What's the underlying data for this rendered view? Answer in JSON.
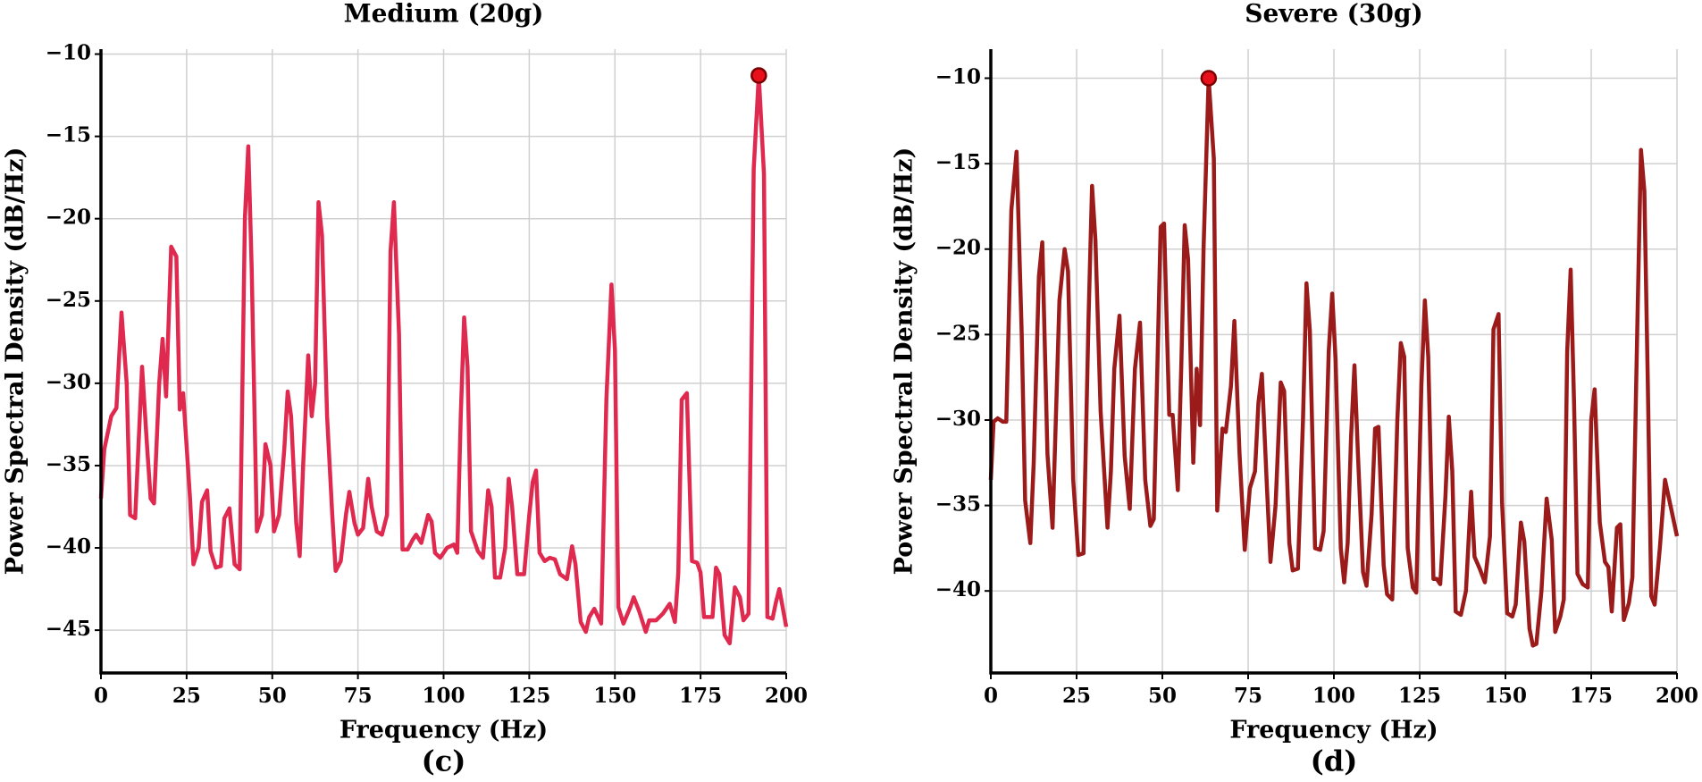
{
  "chart_data": [
    {
      "type": "line",
      "title": "Medium (20g)",
      "xlabel": "Frequency (Hz)",
      "ylabel": "Power Spectral Density (dB/Hz)",
      "caption": "(c)",
      "color": "#e0294f",
      "grid": true,
      "xlim": [
        0,
        200
      ],
      "ylim": [
        -47.6,
        -9.7
      ],
      "xticks": [
        0,
        25,
        50,
        75,
        100,
        125,
        150,
        175,
        200
      ],
      "yticks": [
        {
          "value": -45,
          "label": "−45"
        },
        {
          "value": -40,
          "label": "−40"
        },
        {
          "value": -35,
          "label": "−35"
        },
        {
          "value": -30,
          "label": "−30"
        },
        {
          "value": -25,
          "label": "−25"
        },
        {
          "value": -20,
          "label": "−20"
        },
        {
          "value": -15,
          "label": "−15"
        },
        {
          "value": -10,
          "label": "−10"
        }
      ],
      "x": [
        0,
        1,
        3,
        4.5,
        6,
        7.5,
        8.5,
        10,
        12,
        13.5,
        14.5,
        15.5,
        17,
        18,
        19,
        20.5,
        22,
        23,
        24,
        26,
        27,
        28.5,
        29.5,
        31,
        32,
        33.5,
        35,
        36,
        37.5,
        39,
        40.5,
        42,
        43,
        44,
        45.5,
        47,
        48,
        49.5,
        50.5,
        52,
        53.5,
        54.5,
        55.5,
        57,
        58,
        59,
        60.5,
        61.5,
        62.5,
        63.5,
        64.5,
        66,
        67.5,
        68.5,
        70,
        71.5,
        72.5,
        74,
        75,
        76.5,
        78,
        79,
        80.5,
        82,
        83.5,
        84.5,
        85.5,
        87,
        88,
        89.5,
        91,
        92,
        93.5,
        95.5,
        96.5,
        97.5,
        99,
        101,
        103,
        104,
        105,
        106,
        107,
        108,
        110,
        111.5,
        113,
        114,
        115,
        116.5,
        118,
        119,
        120,
        121.5,
        123.5,
        125,
        126,
        127,
        128,
        129.5,
        131,
        132.5,
        134,
        136,
        137.5,
        138.5,
        140,
        141.5,
        142.5,
        144,
        146,
        147.5,
        149,
        150,
        151,
        152.5,
        154.5,
        155.5,
        157,
        159,
        160,
        162,
        164,
        166,
        167.5,
        168.5,
        169.5,
        171,
        172.5,
        174,
        175,
        176,
        178.5,
        179.5,
        180.5,
        182,
        183.5,
        185,
        186.5,
        187.5,
        189,
        190.5,
        192,
        193.5,
        194.5,
        196,
        197,
        198,
        200
      ],
      "values": [
        -37,
        -34,
        -32,
        -31.5,
        -25.7,
        -30,
        -38,
        -38.2,
        -29,
        -34,
        -37,
        -37.3,
        -30,
        -27.3,
        -30.8,
        -21.7,
        -22.3,
        -31.6,
        -30.6,
        -37,
        -41,
        -40,
        -37.2,
        -36.5,
        -40.2,
        -41.2,
        -41.1,
        -38.2,
        -37.6,
        -41,
        -41.3,
        -20,
        -15.6,
        -23,
        -39,
        -38,
        -33.7,
        -35,
        -39,
        -38,
        -34,
        -30.5,
        -32,
        -38.5,
        -40.5,
        -35,
        -28.3,
        -32,
        -30,
        -19,
        -21,
        -32,
        -38,
        -41.4,
        -40.8,
        -38,
        -36.6,
        -38.5,
        -39.2,
        -38.8,
        -35.8,
        -37.5,
        -39,
        -39.2,
        -38,
        -22,
        -19,
        -27,
        -40.1,
        -40.1,
        -39.5,
        -39.2,
        -39.7,
        -38,
        -38.4,
        -40.3,
        -40.6,
        -40,
        -39.8,
        -40.3,
        -32,
        -26,
        -29,
        -39,
        -40.2,
        -40.6,
        -36.5,
        -37.5,
        -41.8,
        -41.8,
        -40,
        -35.8,
        -37.5,
        -41.6,
        -41.6,
        -38,
        -36,
        -35.3,
        -40.3,
        -40.8,
        -40.6,
        -40.7,
        -41.6,
        -41.9,
        -39.9,
        -41,
        -44.5,
        -45.1,
        -44.2,
        -43.7,
        -44.6,
        -31,
        -24,
        -28,
        -43.6,
        -44.6,
        -43.6,
        -43,
        -43.8,
        -45.1,
        -44.4,
        -44.4,
        -44,
        -43.4,
        -44.5,
        -41.5,
        -31,
        -30.6,
        -40.8,
        -40.9,
        -41.5,
        -44.2,
        -44.2,
        -41.2,
        -41.6,
        -45.3,
        -45.8,
        -42.4,
        -43,
        -44.4,
        -44,
        -17,
        -11.3,
        -17.3,
        -44.2,
        -44.3,
        -43.3,
        -42.5,
        -44.8
      ],
      "peak": {
        "x": 192,
        "y": -11.3
      },
      "peak_color": "#e8101a"
    },
    {
      "type": "line",
      "title": "Severe (30g)",
      "xlabel": "Frequency (Hz)",
      "ylabel": "Power Spectral Density (dB/Hz)",
      "caption": "(d)",
      "color": "#9b1b1b",
      "grid": true,
      "xlim": [
        0,
        200
      ],
      "ylim": [
        -44.8,
        -8.3
      ],
      "xticks": [
        0,
        25,
        50,
        75,
        100,
        125,
        150,
        175,
        200
      ],
      "yticks": [
        {
          "value": -40,
          "label": "−40"
        },
        {
          "value": -35,
          "label": "−35"
        },
        {
          "value": -30,
          "label": "−30"
        },
        {
          "value": -25,
          "label": "−25"
        },
        {
          "value": -20,
          "label": "−20"
        },
        {
          "value": -15,
          "label": "−15"
        },
        {
          "value": -10,
          "label": "−10"
        }
      ],
      "x": [
        0,
        0.8,
        2,
        3.5,
        4.5,
        6,
        7.5,
        9,
        10,
        11.5,
        12.5,
        14,
        15,
        16.5,
        18,
        20,
        21.5,
        22.5,
        24,
        25.5,
        27,
        28.5,
        29.5,
        30.5,
        32,
        34,
        35,
        36,
        37.5,
        39,
        40.5,
        42,
        43.5,
        45,
        46.5,
        47.5,
        49.5,
        50.5,
        52,
        53,
        54.5,
        55.5,
        56.5,
        57.5,
        59,
        60,
        61,
        62,
        63.5,
        65,
        66,
        67.5,
        68.5,
        70,
        71,
        72.5,
        74,
        75.5,
        77,
        78,
        79,
        80.5,
        81.5,
        83,
        84.5,
        85.5,
        87,
        88,
        89.5,
        91,
        92,
        93,
        94.5,
        96,
        97,
        98.5,
        99.5,
        100.5,
        102,
        103,
        104,
        105,
        106,
        107,
        108.5,
        109.5,
        111,
        112,
        113,
        114.5,
        115.5,
        117,
        118.5,
        119.5,
        120.5,
        121.5,
        123,
        124,
        125.5,
        126.5,
        127.5,
        129,
        130,
        131,
        132.5,
        133.5,
        134.5,
        135.5,
        137,
        138.5,
        140,
        141,
        142.5,
        144,
        145.5,
        146.5,
        148,
        149,
        150.5,
        152,
        153,
        154.5,
        155.5,
        157,
        158,
        159,
        160.5,
        162,
        163.5,
        164.5,
        166,
        167,
        168,
        169,
        170,
        171,
        172.5,
        174,
        175,
        176,
        177.5,
        179,
        180,
        181,
        182.5,
        183.5,
        184.5,
        186,
        187,
        188.5,
        189.5,
        190.5,
        191.5,
        192.5,
        193.5,
        195,
        196.5,
        200
      ],
      "values": [
        -33.5,
        -30.1,
        -29.9,
        -30.1,
        -30.1,
        -17.7,
        -14.3,
        -25,
        -34.7,
        -37.2,
        -32.5,
        -21.6,
        -19.6,
        -32,
        -36.3,
        -23,
        -20,
        -21.3,
        -33.5,
        -37.9,
        -37.8,
        -24,
        -16.3,
        -19.5,
        -29.5,
        -36.3,
        -33,
        -27,
        -23.9,
        -32.1,
        -35.2,
        -27,
        -24.3,
        -33.5,
        -36.2,
        -35.8,
        -18.7,
        -18.5,
        -29.7,
        -29.7,
        -34.1,
        -27,
        -18.6,
        -20.6,
        -32.5,
        -27,
        -30.3,
        -20,
        -10,
        -14.7,
        -35.3,
        -30.5,
        -30.7,
        -28,
        -24.2,
        -32,
        -37.6,
        -34,
        -33,
        -29,
        -27.3,
        -34,
        -38.3,
        -35,
        -27.8,
        -28.3,
        -37.2,
        -38.8,
        -38.7,
        -30,
        -22,
        -24.8,
        -37.5,
        -37.6,
        -36.5,
        -26,
        -22.6,
        -26.5,
        -37.5,
        -39.5,
        -37.2,
        -31,
        -26.8,
        -32,
        -38.9,
        -39.7,
        -35.5,
        -30.5,
        -30.4,
        -38.5,
        -40.2,
        -40.5,
        -30,
        -25.5,
        -26.3,
        -37.5,
        -39.8,
        -40.1,
        -28,
        -23,
        -26.3,
        -39.3,
        -39.3,
        -39.6,
        -34.5,
        -29.8,
        -33,
        -41.2,
        -41.4,
        -40,
        -34.2,
        -38,
        -38.7,
        -39.5,
        -36.8,
        -24.7,
        -23.8,
        -34.8,
        -41.3,
        -41.5,
        -40.8,
        -36,
        -37.1,
        -42.2,
        -43.2,
        -43.1,
        -40,
        -34.6,
        -37,
        -42.4,
        -41.5,
        -40.5,
        -26,
        -21.2,
        -29,
        -39,
        -39.6,
        -39.8,
        -30,
        -28.2,
        -36,
        -38.3,
        -38.6,
        -41.2,
        -36.3,
        -36.1,
        -41.7,
        -40.7,
        -39.2,
        -24,
        -14.2,
        -16.6,
        -28,
        -40.3,
        -40.8,
        -37.5,
        -33.5,
        -36.8
      ],
      "peak": {
        "x": 63.5,
        "y": -10
      },
      "peak_color": "#e8101a"
    }
  ]
}
